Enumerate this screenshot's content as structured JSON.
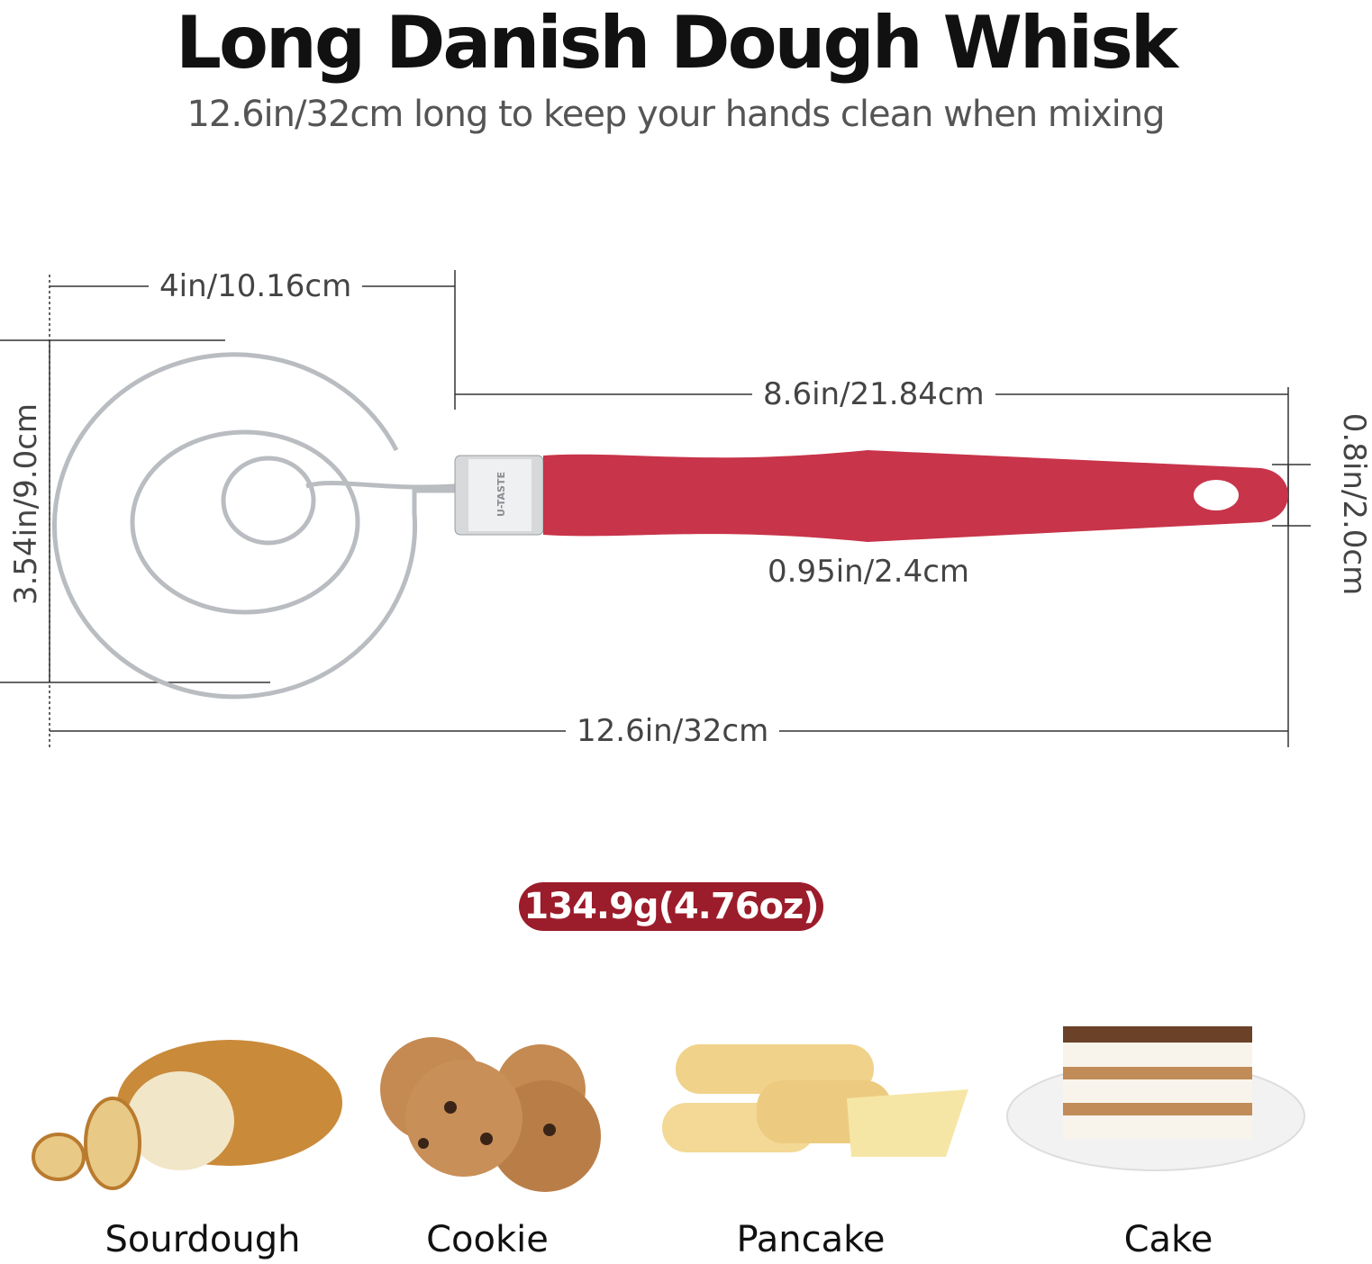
{
  "header": {
    "title": "Long Danish Dough Whisk",
    "subtitle": "12.6in/32cm long to keep your hands clean when mixing"
  },
  "dimensions": {
    "head_width": "4in/10.16cm",
    "handle_length": "8.6in/21.84cm",
    "head_height": "3.54in/9.0cm",
    "handle_diameter": "0.95in/2.4cm",
    "handle_end_height": "0.8in/2.0cm",
    "total_length": "12.6in/32cm"
  },
  "product": {
    "brand_mark": "U-TASTE",
    "handle_color": "#c8344a",
    "wire_color": "#b9bcc0"
  },
  "weight": {
    "label": "134.9g(4.76oz)",
    "badge_color": "#9b1c2a"
  },
  "uses": [
    {
      "label": "Sourdough"
    },
    {
      "label": "Cookie"
    },
    {
      "label": "Pancake"
    },
    {
      "label": "Cake"
    }
  ]
}
